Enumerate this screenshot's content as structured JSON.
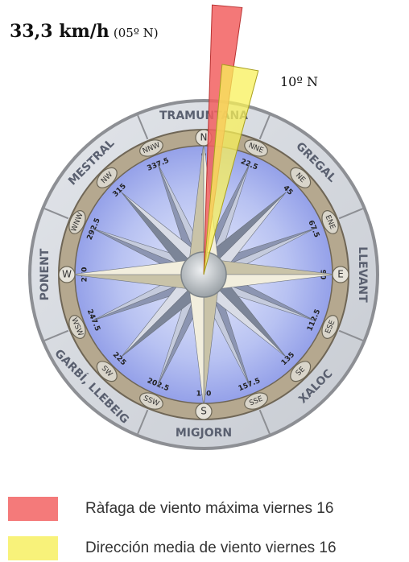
{
  "header": {
    "speed_main": "33,3 km/h",
    "speed_dir": "(05º N)",
    "mean_dir_label": "10º N"
  },
  "wind": {
    "gust_direction_deg": 5,
    "mean_direction_deg": 10
  },
  "compass": {
    "regions": [
      {
        "name": "TRAMUNTANA",
        "angle": 0
      },
      {
        "name": "GREGAL",
        "angle": 45
      },
      {
        "name": "LLEVANT",
        "angle": 90
      },
      {
        "name": "XALOC",
        "angle": 135
      },
      {
        "name": "MIGJORN",
        "angle": 180
      },
      {
        "name": "GARBÍ, LLEBEIG",
        "angle": 225
      },
      {
        "name": "PONENT",
        "angle": 270
      },
      {
        "name": "MESTRAL",
        "angle": 315
      }
    ],
    "points": [
      {
        "label": "N",
        "angle": 0,
        "deg": "0"
      },
      {
        "label": "NNE",
        "angle": 22.5,
        "deg": "22.5"
      },
      {
        "label": "NE",
        "angle": 45,
        "deg": "45"
      },
      {
        "label": "ENE",
        "angle": 67.5,
        "deg": "67.5"
      },
      {
        "label": "E",
        "angle": 90,
        "deg": "90"
      },
      {
        "label": "ESE",
        "angle": 112.5,
        "deg": "112.5"
      },
      {
        "label": "SE",
        "angle": 135,
        "deg": "135"
      },
      {
        "label": "SSE",
        "angle": 157.5,
        "deg": "157.5"
      },
      {
        "label": "S",
        "angle": 180,
        "deg": "180"
      },
      {
        "label": "SSW",
        "angle": 202.5,
        "deg": "202.5"
      },
      {
        "label": "SW",
        "angle": 225,
        "deg": "225"
      },
      {
        "label": "WSW",
        "angle": 247.5,
        "deg": "247.5"
      },
      {
        "label": "W",
        "angle": 270,
        "deg": "270"
      },
      {
        "label": "WNW",
        "angle": 292.5,
        "deg": "292.5"
      },
      {
        "label": "NW",
        "angle": 315,
        "deg": "315"
      },
      {
        "label": "NNW",
        "angle": 337.5,
        "deg": "337.5"
      }
    ]
  },
  "legend": {
    "items": [
      {
        "label": "Ràfaga de viento máxima viernes 16",
        "color": "#f47a7a"
      },
      {
        "label": "Dirección media de viento viernes 16",
        "color": "#f8f27a"
      }
    ]
  }
}
